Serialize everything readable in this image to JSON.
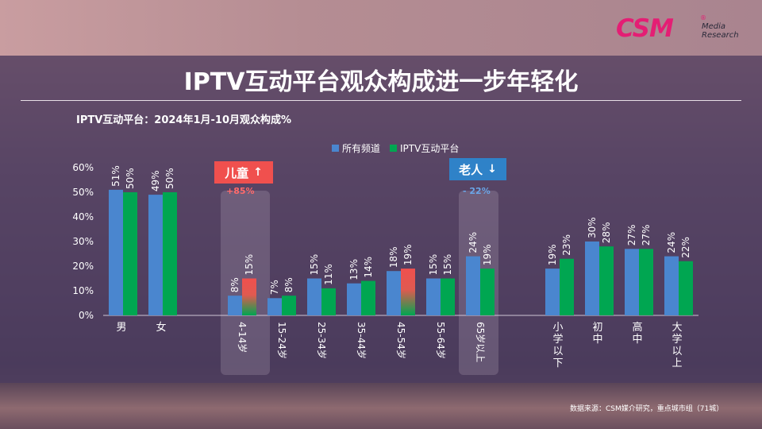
{
  "logo": {
    "brand": "CSM",
    "mark": "®",
    "line1": "Media",
    "line2": "Research"
  },
  "title": "IPTV互动平台观众构成进一步年轻化",
  "subtitle": "IPTV互动平台：2024年1月-10月观众构成%",
  "callouts": {
    "kids": {
      "label": "儿童",
      "arrow": "↑",
      "value": "+85%",
      "color": "#f0504e"
    },
    "old": {
      "label": "老人",
      "arrow": "↓",
      "value": "- 22%",
      "color": "#2f82c8"
    }
  },
  "source": "数据来源：CSM媒介研究，重点城市组（71城）",
  "colors": {
    "series1": "#4a86cf",
    "series2": "#00a651",
    "highlight": "#f0504e"
  },
  "chart_data": {
    "type": "bar",
    "title": "IPTV互动平台：2024年1月-10月观众构成%",
    "categories": [
      "男",
      "女",
      "4-14岁",
      "15-24岁",
      "25-34岁",
      "35-44岁",
      "45-54岁",
      "55-64岁",
      "65岁以上",
      "小学以下",
      "初中",
      "高中",
      "大学以上"
    ],
    "series": [
      {
        "name": "所有频道",
        "values": [
          51,
          49,
          8,
          7,
          15,
          13,
          18,
          15,
          24,
          19,
          30,
          27,
          24
        ]
      },
      {
        "name": "IPTV互动平台",
        "values": [
          50,
          50,
          15,
          8,
          11,
          14,
          19,
          15,
          19,
          23,
          28,
          27,
          22
        ]
      }
    ],
    "data_labels": {
      "所有频道": [
        "51%",
        "49%",
        "8%",
        "7%",
        "15%",
        "13%",
        "18%",
        "15%",
        "24%",
        "19%",
        "30%",
        "27%",
        "24%"
      ],
      "IPTV互动平台": [
        "50%",
        "50%",
        "15%",
        "8%",
        "11%",
        "14%",
        "19%",
        "15%",
        "19%",
        "23%",
        "28%",
        "27%",
        "22%"
      ]
    },
    "highlighted_bars": [
      {
        "category": "4-14岁",
        "series": "IPTV互动平台"
      },
      {
        "category": "45-54岁",
        "series": "IPTV互动平台"
      }
    ],
    "ylim": [
      0,
      60
    ],
    "yticks": [
      "0%",
      "10%",
      "20%",
      "30%",
      "40%",
      "50%",
      "60%"
    ],
    "xlabel": "",
    "ylabel": "",
    "legend_position": "top"
  }
}
